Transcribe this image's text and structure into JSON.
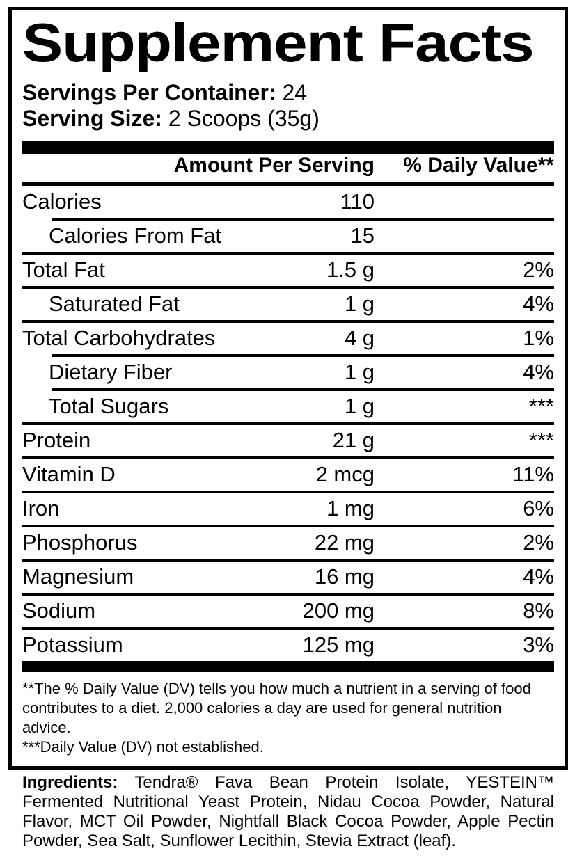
{
  "title": "Supplement Facts",
  "servings": {
    "per_container_label": "Servings Per Container:",
    "per_container_value": "24",
    "serving_size_label": "Serving Size:",
    "serving_size_value": "2 Scoops (35g)"
  },
  "table": {
    "col_amount": "Amount Per Serving",
    "col_dv": "% Daily Value**",
    "rows": [
      {
        "label": "Calories",
        "amount": "110",
        "dv": "",
        "indent": false,
        "sep": "none"
      },
      {
        "label": "Calories From Fat",
        "amount": "15",
        "dv": "",
        "indent": true,
        "sep": "indent"
      },
      {
        "label": "Total Fat",
        "amount": "1.5 g",
        "dv": "2%",
        "indent": false,
        "sep": "full"
      },
      {
        "label": "Saturated Fat",
        "amount": "1 g",
        "dv": "4%",
        "indent": true,
        "sep": "full"
      },
      {
        "label": "Total Carbohydrates",
        "amount": "4 g",
        "dv": "1%",
        "indent": false,
        "sep": "full"
      },
      {
        "label": "Dietary Fiber",
        "amount": "1 g",
        "dv": "4%",
        "indent": true,
        "sep": "indent"
      },
      {
        "label": "Total Sugars",
        "amount": "1 g",
        "dv": "***",
        "indent": true,
        "sep": "indent"
      },
      {
        "label": "Protein",
        "amount": "21 g",
        "dv": "***",
        "indent": false,
        "sep": "full"
      },
      {
        "label": "Vitamin D",
        "amount": "2 mcg",
        "dv": "11%",
        "indent": false,
        "sep": "full"
      },
      {
        "label": "Iron",
        "amount": "1 mg",
        "dv": "6%",
        "indent": false,
        "sep": "full"
      },
      {
        "label": "Phosphorus",
        "amount": "22 mg",
        "dv": "2%",
        "indent": false,
        "sep": "full"
      },
      {
        "label": "Magnesium",
        "amount": "16 mg",
        "dv": "4%",
        "indent": false,
        "sep": "full"
      },
      {
        "label": "Sodium",
        "amount": "200 mg",
        "dv": "8%",
        "indent": false,
        "sep": "full"
      },
      {
        "label": "Potassium",
        "amount": "125 mg",
        "dv": "3%",
        "indent": false,
        "sep": "full"
      }
    ]
  },
  "footnotes": {
    "daily_value": "**The % Daily Value (DV) tells you how much a nutrient in a serving of food contributes to a diet. 2,000 calories a day are used for general nutrition advice.",
    "not_established": "***Daily Value (DV) not established."
  },
  "ingredients": {
    "label": "Ingredients:",
    "text": "Tendra® Fava Bean Protein Isolate, YESTEIN™ Fermented Nutritional Yeast Protein, Nidau Cocoa Powder, Natural Flavor, MCT Oil Powder, Nightfall Black Cocoa Powder, Apple Pectin Powder, Sea Salt, Sunflower Lecithin, Stevia Extract (leaf)."
  },
  "colors": {
    "text": "#000000",
    "background": "#ffffff"
  }
}
